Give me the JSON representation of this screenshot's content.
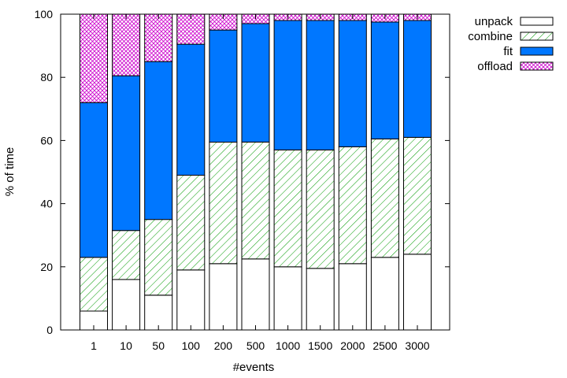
{
  "chart_data": {
    "type": "bar",
    "stacked": true,
    "normalized_percent": true,
    "title": "",
    "xlabel": "#events",
    "ylabel": "% of time",
    "ylim": [
      0,
      100
    ],
    "yticks": [
      0,
      20,
      40,
      60,
      80,
      100
    ],
    "categories": [
      "1",
      "10",
      "50",
      "100",
      "200",
      "500",
      "1000",
      "1500",
      "2000",
      "2500",
      "3000"
    ],
    "legend_position": "outside-top-right",
    "grid": false,
    "series": [
      {
        "name": "unpack",
        "pattern": "solid-white",
        "color": "#000000",
        "values": [
          6,
          16,
          11,
          19,
          21,
          22.5,
          20,
          19.5,
          21,
          23,
          24
        ]
      },
      {
        "name": "combine",
        "pattern": "diagonal-hatch",
        "color": "#009900",
        "values": [
          17,
          15.5,
          24,
          30,
          38.5,
          37,
          37,
          37.5,
          37,
          37.5,
          37
        ]
      },
      {
        "name": "fit",
        "pattern": "solid",
        "color": "#0077ff",
        "values": [
          49,
          49,
          50,
          41.5,
          35.5,
          37.5,
          41,
          41,
          40,
          37,
          37
        ]
      },
      {
        "name": "offload",
        "pattern": "cross-hatch",
        "color": "#cc00cc",
        "values": [
          28,
          19.5,
          15,
          9.5,
          5,
          3,
          2,
          2,
          2,
          2.5,
          2
        ]
      }
    ]
  }
}
